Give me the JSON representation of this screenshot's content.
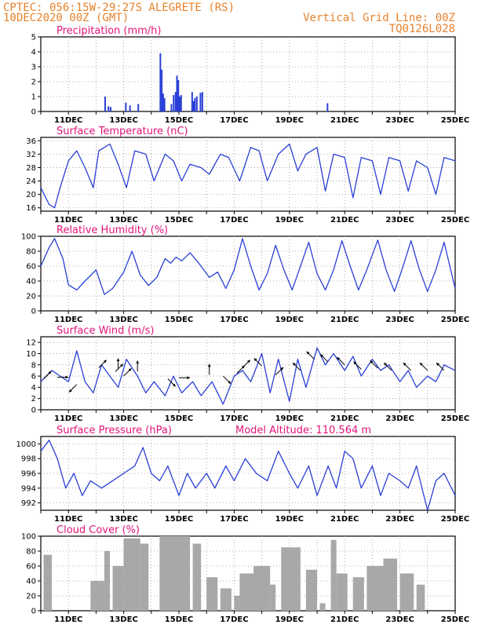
{
  "header": {
    "line1": "CPTEC:  056:15W-29:27S  ALEGRETE (RS)",
    "line2": "10DEC2020 00Z (GMT)",
    "grid_note": "Vertical Grid Line: 00Z",
    "code": "TQ0126L028"
  },
  "colors": {
    "header": "#e8822a",
    "title": "#e0157a",
    "line": "#2a3fd6",
    "bar": "#2a3fd6",
    "cloud": "#a8a8a8"
  },
  "chart_data": [
    {
      "id": "precip",
      "type": "bar",
      "title": "Precipitation (mm/h)",
      "ylim": [
        0,
        5
      ],
      "yticks": [
        0,
        1,
        2,
        3,
        4,
        5
      ],
      "x_ticks": [
        "11DEC",
        "13DEC",
        "15DEC",
        "17DEC",
        "19DEC",
        "21DEC",
        "23DEC",
        "25DEC"
      ],
      "x_unit": "days since 10DEC2020 00Z",
      "bars": [
        [
          2.3,
          1.0
        ],
        [
          2.42,
          0.35
        ],
        [
          2.5,
          0.3
        ],
        [
          3.05,
          0.6
        ],
        [
          3.2,
          0.4
        ],
        [
          3.5,
          0.5
        ],
        [
          4.3,
          3.9
        ],
        [
          4.35,
          2.8
        ],
        [
          4.4,
          1.2
        ],
        [
          4.45,
          0.9
        ],
        [
          4.7,
          0.5
        ],
        [
          4.78,
          1.1
        ],
        [
          4.85,
          1.3
        ],
        [
          4.9,
          2.4
        ],
        [
          4.95,
          2.1
        ],
        [
          5.0,
          1.0
        ],
        [
          5.05,
          1.1
        ],
        [
          5.45,
          1.3
        ],
        [
          5.5,
          0.7
        ],
        [
          5.55,
          0.9
        ],
        [
          5.62,
          1.0
        ],
        [
          5.75,
          1.25
        ],
        [
          5.82,
          1.3
        ],
        [
          10.35,
          0.55
        ]
      ]
    },
    {
      "id": "temp",
      "type": "line",
      "title": "Surface Temperature (nC)",
      "ylim": [
        15,
        37
      ],
      "yticks": [
        16,
        20,
        24,
        28,
        32,
        36
      ],
      "x_ticks": [
        "11DEC",
        "13DEC",
        "15DEC",
        "17DEC",
        "19DEC",
        "21DEC",
        "23DEC",
        "25DEC"
      ],
      "series": [
        {
          "x": [
            0,
            0.3,
            0.5,
            0.7,
            1.0,
            1.3,
            1.6,
            1.9,
            2.1,
            2.5,
            2.8,
            3.1,
            3.4,
            3.8,
            4.1,
            4.5,
            4.8,
            5.1,
            5.4,
            5.8,
            6.1,
            6.5,
            6.8,
            7.2,
            7.6,
            7.9,
            8.2,
            8.6,
            9.0,
            9.3,
            9.6,
            10.0,
            10.3,
            10.6,
            11.0,
            11.3,
            11.6,
            12.0,
            12.3,
            12.6,
            13.0,
            13.3,
            13.6,
            14.0,
            14.3,
            14.6,
            15.0
          ],
          "y": [
            22,
            17,
            16,
            22,
            30,
            33,
            28,
            22,
            33,
            35,
            29,
            22,
            33,
            32,
            24,
            32,
            30,
            24,
            29,
            28,
            26,
            32,
            31,
            24,
            34,
            33,
            24,
            32,
            35,
            27,
            32,
            34,
            21,
            32,
            31,
            19,
            31,
            30,
            20,
            31,
            30,
            21,
            30,
            28,
            20,
            31,
            30
          ]
        }
      ]
    },
    {
      "id": "rh",
      "type": "line",
      "title": "Relative Humidity (%)",
      "ylim": [
        0,
        100
      ],
      "yticks": [
        0,
        20,
        40,
        60,
        80,
        100
      ],
      "x_ticks": [
        "11DEC",
        "13DEC",
        "15DEC",
        "17DEC",
        "19DEC",
        "21DEC",
        "23DEC",
        "25DEC"
      ],
      "series": [
        {
          "x": [
            0,
            0.3,
            0.5,
            0.8,
            1.0,
            1.3,
            1.6,
            2.0,
            2.3,
            2.6,
            3.0,
            3.3,
            3.6,
            3.9,
            4.2,
            4.5,
            4.7,
            4.9,
            5.1,
            5.4,
            5.7,
            6.1,
            6.4,
            6.7,
            7.0,
            7.3,
            7.6,
            7.9,
            8.2,
            8.5,
            8.8,
            9.1,
            9.4,
            9.7,
            10.0,
            10.3,
            10.6,
            10.9,
            11.2,
            11.5,
            11.8,
            12.2,
            12.5,
            12.8,
            13.1,
            13.4,
            13.7,
            14.0,
            14.3,
            14.6,
            15.0
          ],
          "y": [
            60,
            85,
            97,
            70,
            35,
            28,
            40,
            55,
            22,
            30,
            52,
            80,
            48,
            34,
            45,
            70,
            64,
            72,
            67,
            78,
            65,
            45,
            52,
            30,
            55,
            97,
            60,
            28,
            50,
            88,
            55,
            28,
            60,
            92,
            50,
            28,
            55,
            94,
            60,
            28,
            55,
            95,
            55,
            26,
            58,
            94,
            56,
            26,
            55,
            92,
            30
          ]
        }
      ]
    },
    {
      "id": "wind",
      "type": "line",
      "title": "Surface Wind (m/s)",
      "ylim": [
        0,
        13
      ],
      "yticks": [
        0,
        2,
        4,
        6,
        8,
        10,
        12
      ],
      "x_ticks": [
        "11DEC",
        "13DEC",
        "15DEC",
        "17DEC",
        "19DEC",
        "21DEC",
        "23DEC",
        "25DEC"
      ],
      "series": [
        {
          "x": [
            0,
            0.4,
            0.7,
            1.0,
            1.3,
            1.6,
            1.9,
            2.2,
            2.5,
            2.8,
            3.1,
            3.5,
            3.8,
            4.1,
            4.5,
            4.8,
            5.1,
            5.5,
            5.8,
            6.2,
            6.6,
            7.0,
            7.3,
            7.6,
            8.0,
            8.3,
            8.6,
            9.0,
            9.3,
            9.6,
            10.0,
            10.3,
            10.6,
            11.0,
            11.3,
            11.6,
            12.0,
            12.3,
            12.6,
            13.0,
            13.3,
            13.6,
            14.0,
            14.3,
            14.6,
            15.0
          ],
          "y": [
            5,
            7,
            6,
            5,
            10.5,
            5,
            3,
            8,
            6,
            4,
            9,
            6,
            3,
            5,
            2.5,
            6,
            3,
            5,
            2.5,
            5,
            1,
            6,
            7,
            5,
            10,
            3,
            9,
            1.5,
            9,
            4,
            11,
            8,
            10,
            7,
            9.5,
            6,
            9,
            7,
            8,
            5,
            7,
            4,
            6,
            5,
            8,
            7
          ]
        }
      ],
      "arrows": [
        {
          "x": 0.1,
          "y": 5.5,
          "dir": "NE"
        },
        {
          "x": 0.6,
          "y": 5.8,
          "dir": "E"
        },
        {
          "x": 1.3,
          "y": 4.5,
          "dir": "SW"
        },
        {
          "x": 2.1,
          "y": 7.5,
          "dir": "NE"
        },
        {
          "x": 2.7,
          "y": 6.8,
          "dir": "NE"
        },
        {
          "x": 2.8,
          "y": 7.2,
          "dir": "N"
        },
        {
          "x": 3.0,
          "y": 6.0,
          "dir": "NE"
        },
        {
          "x": 3.5,
          "y": 6.8,
          "dir": "N"
        },
        {
          "x": 4.6,
          "y": 5.5,
          "dir": "SE"
        },
        {
          "x": 5.0,
          "y": 5.7,
          "dir": "E"
        },
        {
          "x": 6.1,
          "y": 6.2,
          "dir": "N"
        },
        {
          "x": 6.6,
          "y": 6.0,
          "dir": "SE"
        },
        {
          "x": 7.1,
          "y": 6.5,
          "dir": "NE"
        },
        {
          "x": 7.3,
          "y": 7.5,
          "dir": "NE"
        },
        {
          "x": 8.0,
          "y": 7.8,
          "dir": "NW"
        },
        {
          "x": 8.5,
          "y": 6.2,
          "dir": "NE"
        },
        {
          "x": 9.4,
          "y": 7.0,
          "dir": "NW"
        },
        {
          "x": 9.9,
          "y": 9.0,
          "dir": "NW"
        },
        {
          "x": 10.4,
          "y": 8.5,
          "dir": "NW"
        },
        {
          "x": 11.0,
          "y": 8.0,
          "dir": "NW"
        },
        {
          "x": 11.6,
          "y": 7.2,
          "dir": "NW"
        },
        {
          "x": 12.2,
          "y": 7.4,
          "dir": "NW"
        },
        {
          "x": 12.7,
          "y": 7.0,
          "dir": "NW"
        },
        {
          "x": 13.4,
          "y": 7.0,
          "dir": "NW"
        },
        {
          "x": 14.0,
          "y": 7.0,
          "dir": "NW"
        },
        {
          "x": 14.6,
          "y": 7.0,
          "dir": "NW"
        }
      ]
    },
    {
      "id": "pressure",
      "type": "line",
      "title": "Surface Pressure (hPa)",
      "subtitle": "Model Altitude: 110.564 m",
      "ylim": [
        991,
        1001
      ],
      "yticks": [
        992,
        994,
        996,
        998,
        1000
      ],
      "x_ticks": [
        "11DEC",
        "13DEC",
        "15DEC",
        "17DEC",
        "19DEC",
        "21DEC",
        "23DEC",
        "25DEC"
      ],
      "series": [
        {
          "x": [
            0,
            0.3,
            0.6,
            0.9,
            1.2,
            1.5,
            1.8,
            2.2,
            2.6,
            3.0,
            3.4,
            3.7,
            4.0,
            4.3,
            4.6,
            5.0,
            5.3,
            5.6,
            6.0,
            6.3,
            6.7,
            7.0,
            7.4,
            7.8,
            8.2,
            8.6,
            9.0,
            9.3,
            9.7,
            10.0,
            10.4,
            10.7,
            11.0,
            11.3,
            11.6,
            12.0,
            12.3,
            12.6,
            13.0,
            13.3,
            13.6,
            14.0,
            14.3,
            14.6,
            15.0
          ],
          "y": [
            999,
            1000.5,
            998,
            994,
            996,
            993,
            995,
            994,
            995,
            996,
            997,
            999.5,
            996,
            995,
            997,
            993,
            996,
            994,
            996,
            994,
            997,
            995,
            998,
            996,
            995,
            999,
            996,
            994,
            997,
            993,
            997,
            994,
            999,
            998,
            994,
            997,
            993,
            996,
            995,
            994,
            997,
            991,
            995,
            996,
            993
          ]
        }
      ]
    },
    {
      "id": "cloud",
      "type": "bar",
      "title": "Cloud Cover (%)",
      "ylim": [
        0,
        100
      ],
      "yticks": [
        0,
        20,
        40,
        60,
        80,
        100
      ],
      "x_ticks": [
        "11DEC",
        "13DEC",
        "15DEC",
        "17DEC",
        "19DEC",
        "21DEC",
        "23DEC",
        "25DEC"
      ],
      "blocks": [
        [
          0.1,
          0.4,
          75
        ],
        [
          1.8,
          2.3,
          40
        ],
        [
          2.3,
          2.5,
          80
        ],
        [
          2.6,
          3.0,
          60
        ],
        [
          3.0,
          3.6,
          97
        ],
        [
          3.6,
          3.9,
          90
        ],
        [
          4.3,
          5.4,
          100
        ],
        [
          5.5,
          5.8,
          90
        ],
        [
          6.0,
          6.4,
          45
        ],
        [
          6.5,
          6.9,
          30
        ],
        [
          7.0,
          7.2,
          20
        ],
        [
          7.2,
          7.7,
          50
        ],
        [
          7.7,
          8.3,
          60
        ],
        [
          8.3,
          8.5,
          35
        ],
        [
          8.7,
          9.4,
          85
        ],
        [
          9.6,
          10.0,
          55
        ],
        [
          10.1,
          10.3,
          10
        ],
        [
          10.5,
          10.7,
          95
        ],
        [
          10.7,
          11.1,
          50
        ],
        [
          11.3,
          11.7,
          45
        ],
        [
          11.8,
          12.4,
          60
        ],
        [
          12.4,
          12.9,
          70
        ],
        [
          13.0,
          13.5,
          50
        ],
        [
          13.6,
          13.9,
          35
        ]
      ]
    }
  ]
}
